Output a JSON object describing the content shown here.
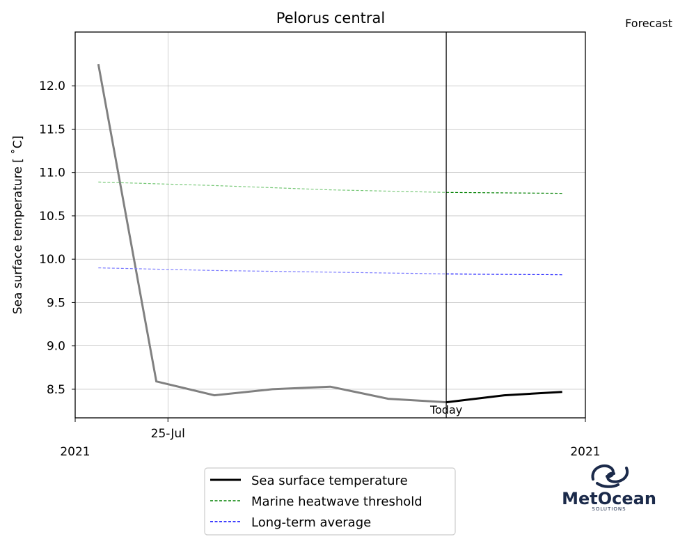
{
  "chart_data": {
    "type": "line",
    "title": "Pelorus central",
    "ylabel": "Sea surface temperature [$^\\circ$C]",
    "ylabel_display": "Sea surface temperature [ ˚C]",
    "xlabel": "",
    "x_tick_labels": [
      "25-Jul"
    ],
    "x_year_labels": [
      "2021",
      "2021"
    ],
    "y_ticks": [
      "8.5",
      "9.0",
      "9.5",
      "10.0",
      "10.5",
      "11.0",
      "11.5",
      "12.0"
    ],
    "ylim": [
      8.17,
      12.62
    ],
    "x_days": {
      "start": 0,
      "end": 11
    },
    "today_x": 8,
    "today_label": "Today",
    "forecast_label": "Forecast",
    "grid": true,
    "legend_position": "below",
    "series": [
      {
        "name": "Sea surface temperature",
        "color": "#000000",
        "hindcast_color": "#808080",
        "style": "solid",
        "x": [
          0.5,
          1.75,
          3,
          4.25,
          5.5,
          6.75,
          8,
          9.25,
          10.5
        ],
        "y": [
          12.25,
          8.59,
          8.43,
          8.5,
          8.53,
          8.39,
          8.35,
          8.43,
          8.47
        ]
      },
      {
        "name": "Marine heatwave threshold",
        "color": "#008000",
        "hindcast_color": "#78c878",
        "style": "dashed",
        "x": [
          0.5,
          3,
          5.5,
          8,
          10.5
        ],
        "y": [
          10.89,
          10.85,
          10.8,
          10.77,
          10.76
        ]
      },
      {
        "name": "Long-term average",
        "color": "#0000ff",
        "hindcast_color": "#7b7bff",
        "style": "dashed",
        "x": [
          0.5,
          3,
          5.5,
          8,
          10.5
        ],
        "y": [
          9.9,
          9.87,
          9.85,
          9.83,
          9.82
        ]
      }
    ]
  },
  "logo": {
    "name": "MetOcean",
    "tagline": "SOLUTIONS",
    "color": "#1b2a4a"
  }
}
